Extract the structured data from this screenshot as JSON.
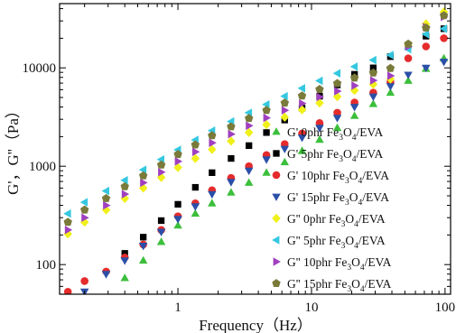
{
  "chart_data": {
    "type": "scatter",
    "title": "",
    "xlabel": "Frequency（Hz）",
    "ylabel": "G'，G''（Pa）",
    "x_scale": "log",
    "y_scale": "log",
    "xlim": [
      0.13,
      110
    ],
    "ylim": [
      50,
      45000
    ],
    "x_ticks": [
      1,
      10,
      100
    ],
    "x_tick_labels": [
      "1",
      "10",
      "100"
    ],
    "y_ticks": [
      100,
      1000,
      10000
    ],
    "y_tick_labels": [
      "100",
      "1000",
      "10000"
    ],
    "grid": false,
    "legend_position": "right",
    "series": [
      {
        "label": "G' 0phr Fe",
        "label_formula": "3O4",
        "label_suffix": "/EVA",
        "marker": "triangle-up",
        "color": "#3cbf3c",
        "points": [
          [
            0.25,
            45
          ],
          [
            0.4,
            73
          ],
          [
            0.55,
            110
          ],
          [
            0.75,
            170
          ],
          [
            1.0,
            250
          ],
          [
            1.35,
            330
          ],
          [
            1.8,
            420
          ],
          [
            2.5,
            540
          ],
          [
            3.4,
            680
          ],
          [
            4.6,
            860
          ],
          [
            6.3,
            1100
          ],
          [
            8.5,
            1430
          ],
          [
            11.5,
            1860
          ],
          [
            15.6,
            2450
          ],
          [
            21,
            3250
          ],
          [
            29,
            4300
          ],
          [
            39,
            5600
          ],
          [
            53,
            7400
          ],
          [
            72,
            9800
          ],
          [
            98,
            12500
          ]
        ]
      },
      {
        "label": "G' 5phr Fe",
        "label_formula": "3O4",
        "label_suffix": "/EVA",
        "marker": "square",
        "color": "#000000",
        "points": [
          [
            0.4,
            130
          ],
          [
            0.55,
            190
          ],
          [
            0.75,
            280
          ],
          [
            1.0,
            410
          ],
          [
            1.35,
            610
          ],
          [
            1.8,
            860
          ],
          [
            2.5,
            1200
          ],
          [
            3.4,
            1620
          ],
          [
            4.6,
            2200
          ],
          [
            6.3,
            2950
          ],
          [
            8.5,
            3900
          ],
          [
            11.5,
            5150
          ],
          [
            15.6,
            6700
          ],
          [
            21,
            8600
          ],
          [
            29,
            10000
          ],
          [
            39,
            13000
          ],
          [
            53,
            17000
          ],
          [
            72,
            21000
          ],
          [
            98,
            25000
          ]
        ]
      },
      {
        "label": "G' 10phr Fe",
        "label_formula": "3O4",
        "label_suffix": "/EVA",
        "marker": "circle",
        "color": "#e52b2b",
        "points": [
          [
            0.15,
            53
          ],
          [
            0.2,
            68
          ],
          [
            0.29,
            85
          ],
          [
            0.4,
            118
          ],
          [
            0.55,
            160
          ],
          [
            0.75,
            225
          ],
          [
            1.0,
            310
          ],
          [
            1.35,
            420
          ],
          [
            1.8,
            570
          ],
          [
            2.5,
            760
          ],
          [
            3.4,
            1000
          ],
          [
            4.6,
            1300
          ],
          [
            6.3,
            1680
          ],
          [
            8.5,
            2150
          ],
          [
            11.5,
            2750
          ],
          [
            15.6,
            3500
          ],
          [
            21,
            4450
          ],
          [
            29,
            5600
          ],
          [
            39,
            7200
          ],
          [
            53,
            12500
          ],
          [
            72,
            16500
          ],
          [
            98,
            20000
          ]
        ]
      },
      {
        "label": "G' 15phr Fe",
        "label_formula": "3O4",
        "label_suffix": "/EVA",
        "marker": "triangle-down",
        "color": "#2b4fa8",
        "points": [
          [
            0.2,
            53
          ],
          [
            0.29,
            80
          ],
          [
            0.4,
            110
          ],
          [
            0.55,
            155
          ],
          [
            0.75,
            215
          ],
          [
            1.0,
            290
          ],
          [
            1.35,
            390
          ],
          [
            1.8,
            520
          ],
          [
            2.5,
            690
          ],
          [
            3.4,
            900
          ],
          [
            4.6,
            1170
          ],
          [
            6.3,
            1500
          ],
          [
            8.5,
            1950
          ],
          [
            11.5,
            2450
          ],
          [
            15.6,
            3100
          ],
          [
            21,
            4000
          ],
          [
            29,
            5100
          ],
          [
            39,
            6500
          ],
          [
            53,
            8500
          ],
          [
            72,
            10000
          ],
          [
            98,
            11500
          ]
        ]
      },
      {
        "label": "G'' 0phr Fe",
        "label_formula": "3O4",
        "label_suffix": "/EVA",
        "marker": "diamond",
        "color": "#f0f01a",
        "points": [
          [
            0.15,
            205
          ],
          [
            0.2,
            270
          ],
          [
            0.29,
            360
          ],
          [
            0.4,
            470
          ],
          [
            0.55,
            600
          ],
          [
            0.75,
            770
          ],
          [
            1.0,
            970
          ],
          [
            1.35,
            1200
          ],
          [
            1.8,
            1480
          ],
          [
            2.5,
            1800
          ],
          [
            3.4,
            2200
          ],
          [
            4.6,
            2650
          ],
          [
            6.3,
            3150
          ],
          [
            8.5,
            3750
          ],
          [
            11.5,
            4400
          ],
          [
            15.6,
            5100
          ],
          [
            21,
            5900
          ],
          [
            29,
            6800
          ],
          [
            39,
            7700
          ],
          [
            53,
            17000
          ],
          [
            72,
            28000
          ],
          [
            98,
            37000
          ]
        ]
      },
      {
        "label": "G'' 5phr Fe",
        "label_formula": "3O4",
        "label_suffix": "/EVA",
        "marker": "triangle-left",
        "color": "#35c8e0",
        "points": [
          [
            0.15,
            330
          ],
          [
            0.2,
            430
          ],
          [
            0.29,
            560
          ],
          [
            0.4,
            720
          ],
          [
            0.55,
            920
          ],
          [
            0.75,
            1170
          ],
          [
            1.0,
            1470
          ],
          [
            1.35,
            1850
          ],
          [
            1.8,
            2300
          ],
          [
            2.5,
            2850
          ],
          [
            3.4,
            3500
          ],
          [
            4.6,
            4250
          ],
          [
            6.3,
            5150
          ],
          [
            8.5,
            6200
          ],
          [
            11.5,
            7400
          ],
          [
            15.6,
            8800
          ],
          [
            21,
            10300
          ],
          [
            29,
            12000
          ],
          [
            39,
            13500
          ],
          [
            53,
            15500
          ],
          [
            72,
            22000
          ],
          [
            98,
            25000
          ]
        ]
      },
      {
        "label": "G'' 10phr Fe",
        "label_formula": "3O4",
        "label_suffix": "/EVA",
        "marker": "triangle-right",
        "color": "#a040c0",
        "points": [
          [
            0.15,
            225
          ],
          [
            0.2,
            300
          ],
          [
            0.29,
            400
          ],
          [
            0.4,
            520
          ],
          [
            0.55,
            680
          ],
          [
            0.75,
            870
          ],
          [
            1.0,
            1120
          ],
          [
            1.35,
            1400
          ],
          [
            1.8,
            1730
          ],
          [
            2.5,
            2120
          ],
          [
            3.4,
            2580
          ],
          [
            4.6,
            3100
          ],
          [
            6.3,
            3700
          ],
          [
            8.5,
            4350
          ],
          [
            11.5,
            5050
          ],
          [
            15.6,
            5800
          ],
          [
            21,
            6600
          ],
          [
            29,
            7450
          ],
          [
            39,
            8300
          ],
          [
            53,
            16500
          ],
          [
            72,
            26000
          ],
          [
            98,
            33000
          ]
        ]
      },
      {
        "label": "G'' 15phr Fe",
        "label_formula": "3O4",
        "label_suffix": "/EVA",
        "marker": "pentagon",
        "color": "#7a7a3a",
        "points": [
          [
            0.15,
            270
          ],
          [
            0.2,
            360
          ],
          [
            0.29,
            470
          ],
          [
            0.4,
            620
          ],
          [
            0.55,
            800
          ],
          [
            0.75,
            1030
          ],
          [
            1.0,
            1320
          ],
          [
            1.35,
            1650
          ],
          [
            1.8,
            2050
          ],
          [
            2.5,
            2520
          ],
          [
            3.4,
            3070
          ],
          [
            4.6,
            3700
          ],
          [
            6.3,
            4400
          ],
          [
            8.5,
            5200
          ],
          [
            11.5,
            6050
          ],
          [
            15.6,
            6950
          ],
          [
            21,
            7900
          ],
          [
            29,
            8900
          ],
          [
            39,
            9900
          ],
          [
            53,
            17500
          ],
          [
            72,
            25500
          ],
          [
            98,
            34000
          ]
        ]
      }
    ]
  }
}
